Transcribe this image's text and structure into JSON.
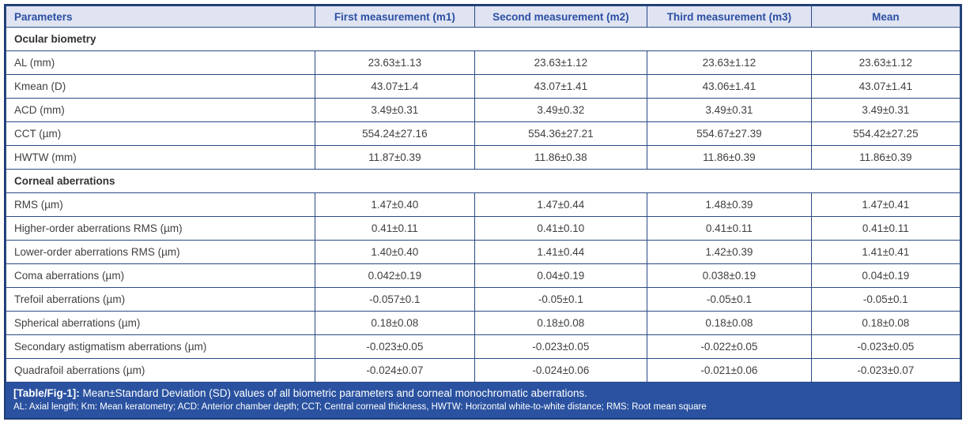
{
  "table": {
    "columns": [
      "Parameters",
      "First measurement (m1)",
      "Second measurement (m2)",
      "Third measurement (m3)",
      "Mean"
    ],
    "sections": [
      {
        "title": "Ocular biometry",
        "rows": [
          {
            "label": "AL (mm)",
            "values": [
              "23.63±1.13",
              "23.63±1.12",
              "23.63±1.12",
              "23.63±1.12"
            ]
          },
          {
            "label": "Kmean (D)",
            "values": [
              "43.07±1.4",
              "43.07±1.41",
              "43.06±1.41",
              "43.07±1.41"
            ]
          },
          {
            "label": "ACD (mm)",
            "values": [
              "3.49±0.31",
              "3.49±0.32",
              "3.49±0.31",
              "3.49±0.31"
            ]
          },
          {
            "label": "CCT (µm)",
            "values": [
              "554.24±27.16",
              "554.36±27.21",
              "554.67±27.39",
              "554.42±27.25"
            ]
          },
          {
            "label": "HWTW (mm)",
            "values": [
              "11.87±0.39",
              "11.86±0.38",
              "11.86±0.39",
              "11.86±0.39"
            ]
          }
        ]
      },
      {
        "title": "Corneal aberrations",
        "rows": [
          {
            "label": "RMS (µm)",
            "values": [
              "1.47±0.40",
              "1.47±0.44",
              "1.48±0.39",
              "1.47±0.41"
            ]
          },
          {
            "label": "Higher-order aberrations RMS (µm)",
            "values": [
              "0.41±0.11",
              "0.41±0.10",
              "0.41±0.11",
              "0.41±0.11"
            ]
          },
          {
            "label": "Lower-order aberrations RMS (µm)",
            "values": [
              "1.40±0.40",
              "1.41±0.44",
              "1.42±0.39",
              "1.41±0.41"
            ]
          },
          {
            "label": "Coma aberrations (µm)",
            "values": [
              "0.042±0.19",
              "0.04±0.19",
              "0.038±0.19",
              "0.04±0.19"
            ]
          },
          {
            "label": "Trefoil aberrations (µm)",
            "values": [
              "-0.057±0.1",
              "-0.05±0.1",
              "-0.05±0.1",
              "-0.05±0.1"
            ]
          },
          {
            "label": "Spherical aberrations (µm)",
            "values": [
              "0.18±0.08",
              "0.18±0.08",
              "0.18±0.08",
              "0.18±0.08"
            ]
          },
          {
            "label": "Secondary astigmatism aberrations (µm)",
            "values": [
              "-0.023±0.05",
              "-0.023±0.05",
              "-0.022±0.05",
              "-0.023±0.05"
            ]
          },
          {
            "label": "Quadrafoil aberrations (µm)",
            "values": [
              "-0.024±0.07",
              "-0.024±0.06",
              "-0.021±0.06",
              "-0.023±0.07"
            ]
          }
        ]
      }
    ],
    "caption": {
      "tag": "[Table/Fig-1]:",
      "text": " Mean±Standard Deviation (SD) values of all biometric parameters and corneal monochromatic aberrations.",
      "abbreviations": "AL: Axial length; Km: Mean keratometry; ACD: Anterior chamber depth; CCT; Central corneal thickness, HWTW: Horizontal white-to-white distance; RMS: Root mean square"
    },
    "colors": {
      "header_bg": "#dfe3f2",
      "header_text": "#2b4fa2",
      "border": "#2a4a85",
      "outer_border": "#1e3c74",
      "body_text": "#3f3f3f",
      "caption_bg": "#2a52a0",
      "caption_text": "#ffffff"
    }
  }
}
